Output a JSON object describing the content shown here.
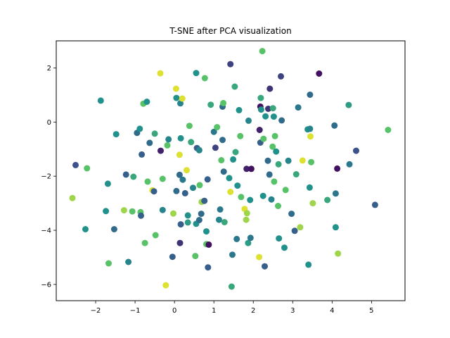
{
  "chart_data": {
    "type": "scatter",
    "title": "T-SNE after PCA visualization",
    "xlabel": "",
    "ylabel": "",
    "xlim": [
      -3.0,
      5.85
    ],
    "ylim": [
      -6.6,
      3.0
    ],
    "xticks": [
      -2,
      -1,
      0,
      1,
      2,
      3,
      4,
      5
    ],
    "yticks": [
      -6,
      -4,
      -2,
      0,
      2
    ],
    "xtick_labels": [
      "−2",
      "−1",
      "0",
      "1",
      "2",
      "3",
      "4",
      "5"
    ],
    "ytick_labels": [
      "−6",
      "−4",
      "−2",
      "0",
      "2"
    ],
    "grid": false,
    "legend": false,
    "colormap": "viridis",
    "colormap_stops": [
      "#440154",
      "#3b528b",
      "#21918c",
      "#5ec962",
      "#fde725"
    ],
    "points": [
      {
        "x": -2.59,
        "y": -2.81,
        "c": 0.85
      },
      {
        "x": -2.51,
        "y": -1.59,
        "c": 0.25
      },
      {
        "x": -2.26,
        "y": -3.96,
        "c": 0.5
      },
      {
        "x": -2.22,
        "y": -1.71,
        "c": 0.72
      },
      {
        "x": -1.87,
        "y": 0.79,
        "c": 0.5
      },
      {
        "x": -1.74,
        "y": -3.29,
        "c": 0.5
      },
      {
        "x": -1.69,
        "y": -2.28,
        "c": 0.5
      },
      {
        "x": -1.67,
        "y": -5.22,
        "c": 0.72
      },
      {
        "x": -1.53,
        "y": -3.96,
        "c": 0.35
      },
      {
        "x": -1.48,
        "y": -0.45,
        "c": 0.5
      },
      {
        "x": -1.28,
        "y": -3.26,
        "c": 0.85
      },
      {
        "x": -1.23,
        "y": -1.94,
        "c": 0.3
      },
      {
        "x": -1.17,
        "y": -5.17,
        "c": 0.45
      },
      {
        "x": -1.07,
        "y": -3.3,
        "c": 0.72
      },
      {
        "x": -1.04,
        "y": -2.02,
        "c": 0.6
      },
      {
        "x": -0.95,
        "y": -0.4,
        "c": 0.35
      },
      {
        "x": -0.88,
        "y": -0.25,
        "c": 0.5
      },
      {
        "x": -0.86,
        "y": -3.33,
        "c": 0.72
      },
      {
        "x": -0.85,
        "y": -3.46,
        "c": 0.3
      },
      {
        "x": -0.83,
        "y": -1.2,
        "c": 0.3
      },
      {
        "x": -0.79,
        "y": 0.68,
        "c": 0.72
      },
      {
        "x": -0.75,
        "y": -4.47,
        "c": 0.72
      },
      {
        "x": -0.7,
        "y": 0.75,
        "c": 0.5
      },
      {
        "x": -0.68,
        "y": -2.2,
        "c": 0.72
      },
      {
        "x": -0.63,
        "y": -0.77,
        "c": 0.35
      },
      {
        "x": -0.56,
        "y": -2.52,
        "c": 0.95
      },
      {
        "x": -0.52,
        "y": -2.56,
        "c": 0.3
      },
      {
        "x": -0.5,
        "y": -0.43,
        "c": 0.6
      },
      {
        "x": -0.48,
        "y": -4.18,
        "c": 0.72
      },
      {
        "x": -0.35,
        "y": -1.06,
        "c": 0.1
      },
      {
        "x": -0.36,
        "y": 1.8,
        "c": 0.95
      },
      {
        "x": -0.3,
        "y": -3.25,
        "c": 0.45
      },
      {
        "x": -0.3,
        "y": -2.1,
        "c": 0.72
      },
      {
        "x": -0.22,
        "y": -6.03,
        "c": 0.95
      },
      {
        "x": -0.18,
        "y": -0.86,
        "c": 0.72
      },
      {
        "x": -0.15,
        "y": -0.64,
        "c": 0.45
      },
      {
        "x": -0.05,
        "y": -4.98,
        "c": 0.3
      },
      {
        "x": -0.03,
        "y": -3.38,
        "c": 0.85
      },
      {
        "x": 0.04,
        "y": 1.23,
        "c": 0.95
      },
      {
        "x": 0.05,
        "y": 0.89,
        "c": 0.5
      },
      {
        "x": 0.05,
        "y": -2.55,
        "c": 0.35
      },
      {
        "x": 0.13,
        "y": -1.21,
        "c": 0.95
      },
      {
        "x": 0.14,
        "y": -4.47,
        "c": 0.15
      },
      {
        "x": 0.16,
        "y": -3.78,
        "c": 0.3
      },
      {
        "x": 0.13,
        "y": -1.95,
        "c": 0.35
      },
      {
        "x": 0.16,
        "y": -0.6,
        "c": 0.5
      },
      {
        "x": 0.15,
        "y": 0.69,
        "c": 0.45
      },
      {
        "x": 0.2,
        "y": 0.87,
        "c": 0.95
      },
      {
        "x": 0.21,
        "y": -2.13,
        "c": 0.4
      },
      {
        "x": 0.27,
        "y": -2.63,
        "c": 0.3
      },
      {
        "x": 0.31,
        "y": -1.78,
        "c": 0.95
      },
      {
        "x": 0.34,
        "y": -3.71,
        "c": 0.55
      },
      {
        "x": 0.34,
        "y": -3.45,
        "c": 0.5
      },
      {
        "x": 0.38,
        "y": -0.14,
        "c": 0.72
      },
      {
        "x": 0.42,
        "y": -0.74,
        "c": 0.6
      },
      {
        "x": 0.47,
        "y": -2.43,
        "c": 0.45
      },
      {
        "x": 0.53,
        "y": -4.95,
        "c": 0.72
      },
      {
        "x": 0.55,
        "y": -3.76,
        "c": 0.5
      },
      {
        "x": 0.55,
        "y": 1.81,
        "c": 0.5
      },
      {
        "x": 0.57,
        "y": -0.96,
        "c": 0.3
      },
      {
        "x": 0.63,
        "y": -1.04,
        "c": 0.45
      },
      {
        "x": 0.63,
        "y": -3.62,
        "c": 0.35
      },
      {
        "x": 0.64,
        "y": -2.33,
        "c": 0.72
      },
      {
        "x": 0.68,
        "y": -3.39,
        "c": 0.35
      },
      {
        "x": 0.69,
        "y": -2.95,
        "c": 0.85
      },
      {
        "x": 0.76,
        "y": -2.91,
        "c": 0.3
      },
      {
        "x": 0.77,
        "y": 1.62,
        "c": 0.72
      },
      {
        "x": 0.81,
        "y": -4.51,
        "c": 0.72
      },
      {
        "x": 0.81,
        "y": -4.04,
        "c": 0.5
      },
      {
        "x": 0.84,
        "y": -2.12,
        "c": 0.3
      },
      {
        "x": 0.85,
        "y": -5.37,
        "c": 0.3
      },
      {
        "x": 0.87,
        "y": -4.53,
        "c": 0.05
      },
      {
        "x": 0.92,
        "y": 0.64,
        "c": 0.6
      },
      {
        "x": 1.0,
        "y": -0.36,
        "c": 0.4
      },
      {
        "x": 1.04,
        "y": -0.95,
        "c": 0.2
      },
      {
        "x": 1.08,
        "y": -0.19,
        "c": 0.72
      },
      {
        "x": 1.13,
        "y": -3.61,
        "c": 0.45
      },
      {
        "x": 1.16,
        "y": -3.23,
        "c": 0.4
      },
      {
        "x": 1.19,
        "y": -1.41,
        "c": 0.72
      },
      {
        "x": 1.22,
        "y": 0.57,
        "c": 0.35
      },
      {
        "x": 1.24,
        "y": 0.7,
        "c": 0.72
      },
      {
        "x": 1.22,
        "y": -0.66,
        "c": 0.35
      },
      {
        "x": 1.25,
        "y": -1.83,
        "c": 0.35
      },
      {
        "x": 1.27,
        "y": -3.7,
        "c": 0.6
      },
      {
        "x": 1.39,
        "y": -2.07,
        "c": 0.5
      },
      {
        "x": 1.42,
        "y": -2.58,
        "c": 0.95
      },
      {
        "x": 1.42,
        "y": 2.14,
        "c": 0.2
      },
      {
        "x": 1.45,
        "y": -6.08,
        "c": 0.6
      },
      {
        "x": 1.47,
        "y": -4.9,
        "c": 0.4
      },
      {
        "x": 1.49,
        "y": -1.38,
        "c": 0.5
      },
      {
        "x": 1.53,
        "y": 1.31,
        "c": 0.6
      },
      {
        "x": 1.55,
        "y": -1.11,
        "c": 0.6
      },
      {
        "x": 1.58,
        "y": -4.32,
        "c": 0.4
      },
      {
        "x": 1.6,
        "y": -2.35,
        "c": 0.5
      },
      {
        "x": 1.64,
        "y": 0.44,
        "c": 0.5
      },
      {
        "x": 1.67,
        "y": -0.52,
        "c": 0.72
      },
      {
        "x": 1.69,
        "y": -2.77,
        "c": 0.72
      },
      {
        "x": 1.78,
        "y": -3.21,
        "c": 0.95
      },
      {
        "x": 1.82,
        "y": -3.61,
        "c": 0.85
      },
      {
        "x": 1.83,
        "y": -1.73,
        "c": 0.1
      },
      {
        "x": 1.84,
        "y": -3.37,
        "c": 0.85
      },
      {
        "x": 1.87,
        "y": -4.47,
        "c": 0.55
      },
      {
        "x": 1.88,
        "y": 0.05,
        "c": 0.45
      },
      {
        "x": 1.92,
        "y": -2.88,
        "c": 0.5
      },
      {
        "x": 1.93,
        "y": -4.28,
        "c": 0.4
      },
      {
        "x": 1.95,
        "y": -1.73,
        "c": 0.05
      },
      {
        "x": 2.15,
        "y": -4.99,
        "c": 0.95
      },
      {
        "x": 2.16,
        "y": -0.29,
        "c": 0.1
      },
      {
        "x": 2.18,
        "y": 0.57,
        "c": 0.05
      },
      {
        "x": 2.18,
        "y": -0.76,
        "c": 0.3
      },
      {
        "x": 2.19,
        "y": 0.89,
        "c": 0.6
      },
      {
        "x": 2.2,
        "y": 0.46,
        "c": 0.5
      },
      {
        "x": 2.23,
        "y": 2.62,
        "c": 0.72
      },
      {
        "x": 2.25,
        "y": -2.73,
        "c": 0.5
      },
      {
        "x": 2.26,
        "y": -0.62,
        "c": 0.72
      },
      {
        "x": 2.29,
        "y": -5.33,
        "c": 0.3
      },
      {
        "x": 2.31,
        "y": 0.21,
        "c": 0.5
      },
      {
        "x": 2.37,
        "y": -1.43,
        "c": 0.35
      },
      {
        "x": 2.38,
        "y": 0.49,
        "c": 0.15
      },
      {
        "x": 2.41,
        "y": -1.94,
        "c": 0.35
      },
      {
        "x": 2.42,
        "y": 1.23,
        "c": 0.15
      },
      {
        "x": 2.46,
        "y": -2.86,
        "c": 0.45
      },
      {
        "x": 2.49,
        "y": -0.91,
        "c": 0.72
      },
      {
        "x": 2.5,
        "y": 0.51,
        "c": 0.6
      },
      {
        "x": 2.52,
        "y": 0.2,
        "c": 0.5
      },
      {
        "x": 2.53,
        "y": -2.2,
        "c": 0.72
      },
      {
        "x": 2.55,
        "y": -0.52,
        "c": 0.72
      },
      {
        "x": 2.58,
        "y": -1.09,
        "c": 0.5
      },
      {
        "x": 2.63,
        "y": -3.1,
        "c": 0.72
      },
      {
        "x": 2.64,
        "y": -1.56,
        "c": 0.6
      },
      {
        "x": 2.65,
        "y": -4.3,
        "c": 0.5
      },
      {
        "x": 2.7,
        "y": 1.69,
        "c": 0.2
      },
      {
        "x": 2.72,
        "y": 0.06,
        "c": 0.35
      },
      {
        "x": 2.79,
        "y": -4.64,
        "c": 0.5
      },
      {
        "x": 2.82,
        "y": -2.51,
        "c": 0.72
      },
      {
        "x": 2.89,
        "y": -1.43,
        "c": 0.45
      },
      {
        "x": 2.97,
        "y": -3.39,
        "c": 0.35
      },
      {
        "x": 3.05,
        "y": -4.02,
        "c": 0.3
      },
      {
        "x": 3.09,
        "y": -1.93,
        "c": 0.6
      },
      {
        "x": 3.14,
        "y": 0.54,
        "c": 0.4
      },
      {
        "x": 3.19,
        "y": -3.89,
        "c": 0.85
      },
      {
        "x": 3.25,
        "y": -1.42,
        "c": 0.95
      },
      {
        "x": 3.38,
        "y": -0.27,
        "c": 0.5
      },
      {
        "x": 3.4,
        "y": -5.27,
        "c": 0.5
      },
      {
        "x": 3.43,
        "y": -2.42,
        "c": 0.5
      },
      {
        "x": 3.44,
        "y": 1.01,
        "c": 0.35
      },
      {
        "x": 3.44,
        "y": -0.25,
        "c": 0.45
      },
      {
        "x": 3.45,
        "y": -0.53,
        "c": 0.95
      },
      {
        "x": 3.47,
        "y": -1.48,
        "c": 0.72
      },
      {
        "x": 3.51,
        "y": -3.0,
        "c": 0.85
      },
      {
        "x": 3.67,
        "y": 1.79,
        "c": 0.05
      },
      {
        "x": 3.88,
        "y": -2.88,
        "c": 0.6
      },
      {
        "x": 4.06,
        "y": -0.13,
        "c": 0.35
      },
      {
        "x": 4.09,
        "y": -3.89,
        "c": 0.5
      },
      {
        "x": 4.09,
        "y": -2.64,
        "c": 0.4
      },
      {
        "x": 4.13,
        "y": -1.72,
        "c": 0.05
      },
      {
        "x": 4.15,
        "y": -4.86,
        "c": 0.85
      },
      {
        "x": 4.42,
        "y": 0.63,
        "c": 0.55
      },
      {
        "x": 4.44,
        "y": -1.56,
        "c": 0.4
      },
      {
        "x": 4.61,
        "y": -1.06,
        "c": 0.25
      },
      {
        "x": 5.09,
        "y": -3.06,
        "c": 0.3
      },
      {
        "x": 5.42,
        "y": -0.29,
        "c": 0.72
      }
    ]
  }
}
